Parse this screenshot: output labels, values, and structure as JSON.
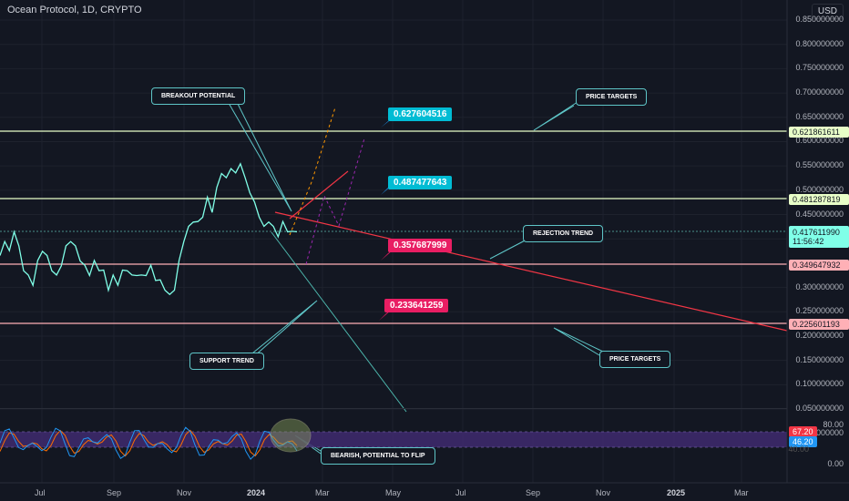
{
  "header": {
    "title": "Ocean Protocol, 1D, CRYPTO",
    "currency": "USD"
  },
  "colors": {
    "background": "#131722",
    "price_line": "#80ffe8",
    "red_line": "#f23645",
    "green_level": "#e8ffc8",
    "pink_level": "#ffb0b6",
    "cyan_box": "#00bcd4",
    "pink_box": "#e91e63",
    "teal_trend": "#4db6ac",
    "rsi_fill": "#3f2a6e",
    "rsi_k": "#2196f3",
    "rsi_d": "#ff6d00"
  },
  "price_axis": {
    "ticks": [
      "0.850000000",
      "0.800000000",
      "0.750000000",
      "0.700000000",
      "0.650000000",
      "0.600000000",
      "0.550000000",
      "0.500000000",
      "0.450000000",
      "0.400000000",
      "0.300000000",
      "0.250000000",
      "0.200000000",
      "0.150000000",
      "0.100000000",
      "0.050000000",
      "0.000000000"
    ],
    "current_price": "0.417611990",
    "countdown": "11:56:42",
    "levels": [
      "0.621861611",
      "0.481287819",
      "0.349647932",
      "0.225601193"
    ]
  },
  "rsi_axis": {
    "ticks": [
      "80.00",
      "40.00",
      "0.00"
    ],
    "k_value": "67.20",
    "d_value": "46.20"
  },
  "time_axis": {
    "labels": [
      "Jul",
      "Sep",
      "Nov",
      "2024",
      "Mar",
      "May",
      "Jul",
      "Sep",
      "Nov",
      "2025",
      "Mar"
    ],
    "bold": [
      "2024",
      "2025"
    ]
  },
  "annotations": {
    "breakout": "BREAKOUT POTENTIAL",
    "targets_top": "PRICE TARGETS",
    "rejection": "REJECTION TREND",
    "support": "SUPPORT TREND",
    "targets_bottom": "PRICE TARGETS",
    "bearish": "BEARISH, POTENTIAL TO FLIP"
  },
  "value_labels": {
    "v1": "0.627604516",
    "v2": "0.487477643",
    "v3": "0.357687999",
    "v4": "0.233641259"
  },
  "chart_data": {
    "type": "line",
    "title": "Ocean Protocol, 1D, CRYPTO",
    "ylabel": "USD",
    "ylim": [
      0,
      0.85
    ],
    "x_labels": [
      "Jul",
      "Sep",
      "Nov",
      "2024",
      "Mar",
      "May",
      "Jul",
      "Sep",
      "Nov",
      "2025",
      "Mar"
    ],
    "series": [
      {
        "values": [
          0.36,
          0.4,
          0.37,
          0.42,
          0.38,
          0.34,
          0.32,
          0.31,
          0.35,
          0.38,
          0.36,
          0.34,
          0.32,
          0.35,
          0.38,
          0.4,
          0.38,
          0.36,
          0.34,
          0.33,
          0.35,
          0.34,
          0.33,
          0.3,
          0.32,
          0.31,
          0.33,
          0.34,
          0.32,
          0.33,
          0.32,
          0.33,
          0.34,
          0.32,
          0.31,
          0.3,
          0.28,
          0.3,
          0.35,
          0.4,
          0.42,
          0.44,
          0.43,
          0.45,
          0.48,
          0.46,
          0.5,
          0.54,
          0.52,
          0.55,
          0.53,
          0.56,
          0.52,
          0.5,
          0.47,
          0.45,
          0.42,
          0.44,
          0.42,
          0.41,
          0.43,
          0.42,
          0.41,
          0.42
        ]
      }
    ],
    "levels": [
      0.621861611,
      0.481287819,
      0.349647932,
      0.225601193
    ],
    "rsi": {
      "k": 67.2,
      "d": 46.2,
      "ylim": [
        0,
        100
      ]
    }
  }
}
